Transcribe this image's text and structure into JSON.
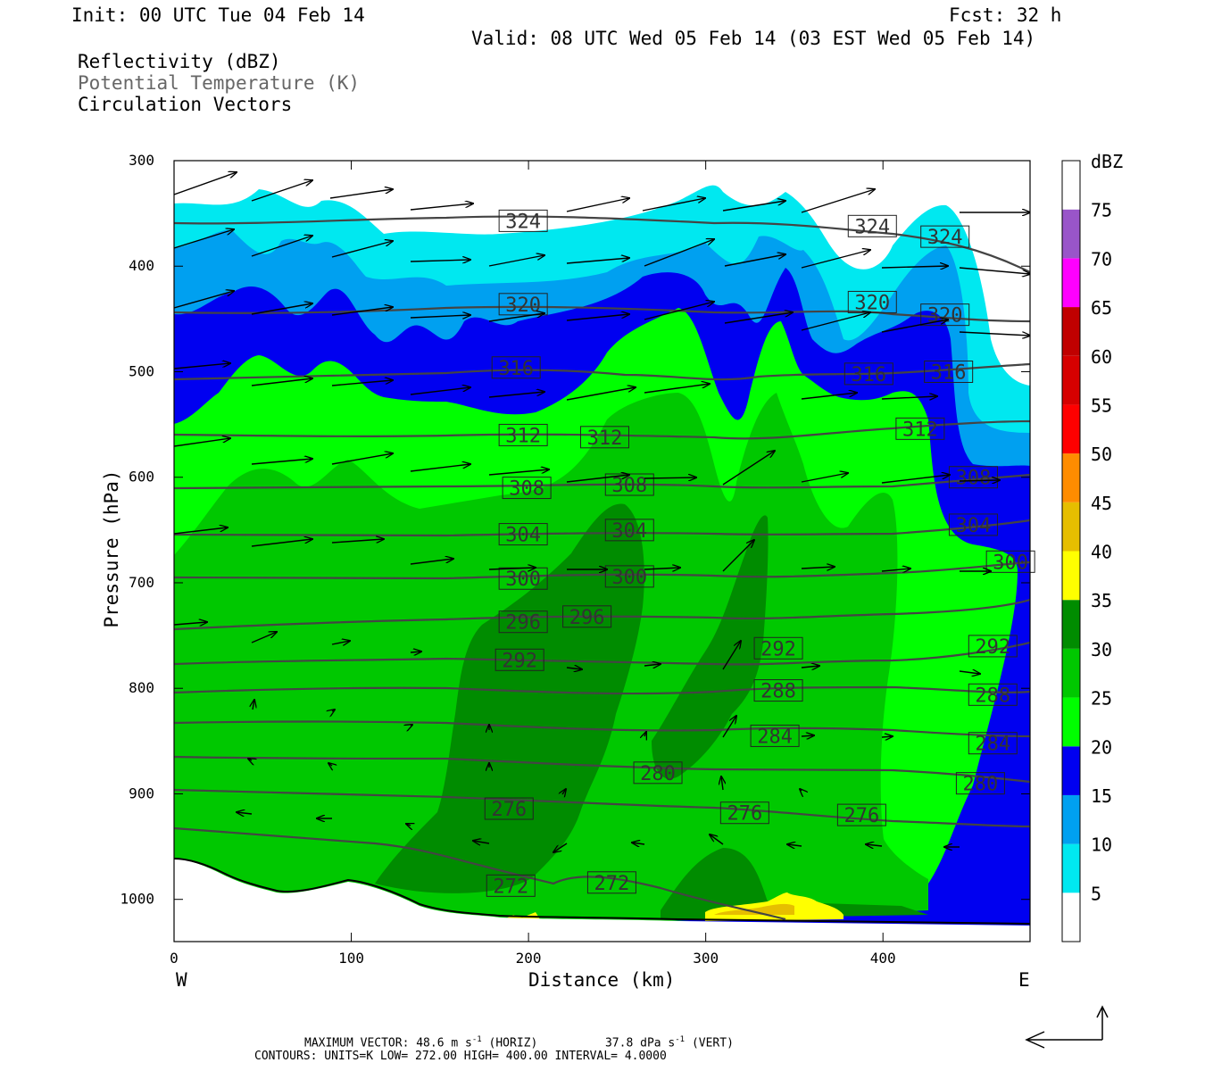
{
  "header": {
    "init": "Init: 00 UTC Tue 04 Feb 14",
    "fcst": "Fcst:   32 h",
    "valid": "Valid: 08 UTC Wed 05 Feb 14 (03 EST Wed 05 Feb 14)"
  },
  "fields": {
    "reflectivity": "Reflectivity (dBZ)",
    "theta": "Potential Temperature (K)",
    "vectors": "Circulation Vectors"
  },
  "footer": {
    "max_vector_label": "MAXIMUM VECTOR:",
    "max_h_value": "48.6 m s",
    "max_h_unit": "(HORIZ)",
    "max_v_value": "37.8 dPa s",
    "max_v_unit": "(VERT)",
    "exp": "-1",
    "contours": "CONTOURS:  UNITS=K  LOW=  272.00      HIGH=  400.00       INTERVAL=    4.0000"
  },
  "colorbar": {
    "unit": "dBZ",
    "levels": [
      5,
      10,
      15,
      20,
      25,
      30,
      35,
      40,
      45,
      50,
      55,
      60,
      65,
      70,
      75
    ],
    "colors": [
      "#ffffff",
      "#00e8f0",
      "#00a0f0",
      "#0000f0",
      "#00ff00",
      "#00c800",
      "#008c00",
      "#ffff00",
      "#e6be00",
      "#ff8c00",
      "#ff0000",
      "#d60000",
      "#c00000",
      "#ff00ff",
      "#9955c9",
      "#ffffff"
    ]
  },
  "chart_data": {
    "type": "contour",
    "xlabel": "Distance (km)",
    "ylabel": "Pressure (hPa)",
    "xlim": [
      0,
      483
    ],
    "ylim": [
      1040,
      300
    ],
    "x_ticks": [
      0,
      100,
      200,
      300,
      400
    ],
    "y_ticks": [
      300,
      400,
      500,
      600,
      700,
      800,
      900,
      1000
    ],
    "x_end_labels": {
      "left": "W",
      "right": "E"
    },
    "theta_labels": [
      {
        "value": "324",
        "x": 197,
        "p": 357
      },
      {
        "value": "324",
        "x": 394,
        "p": 362
      },
      {
        "value": "324",
        "x": 435,
        "p": 372
      },
      {
        "value": "320",
        "x": 197,
        "p": 436
      },
      {
        "value": "320",
        "x": 394,
        "p": 434
      },
      {
        "value": "320",
        "x": 435,
        "p": 446
      },
      {
        "value": "316",
        "x": 193,
        "p": 496
      },
      {
        "value": "316",
        "x": 392,
        "p": 502
      },
      {
        "value": "316",
        "x": 437,
        "p": 500
      },
      {
        "value": "312",
        "x": 197,
        "p": 560
      },
      {
        "value": "312",
        "x": 243,
        "p": 562
      },
      {
        "value": "312",
        "x": 421,
        "p": 554
      },
      {
        "value": "308",
        "x": 199,
        "p": 610
      },
      {
        "value": "308",
        "x": 257,
        "p": 607
      },
      {
        "value": "308",
        "x": 451,
        "p": 600
      },
      {
        "value": "304",
        "x": 197,
        "p": 654
      },
      {
        "value": "304",
        "x": 257,
        "p": 650
      },
      {
        "value": "304",
        "x": 451,
        "p": 645
      },
      {
        "value": "300",
        "x": 197,
        "p": 696
      },
      {
        "value": "300",
        "x": 257,
        "p": 694
      },
      {
        "value": "300",
        "x": 472,
        "p": 680
      },
      {
        "value": "296",
        "x": 197,
        "p": 737
      },
      {
        "value": "296",
        "x": 233,
        "p": 732
      },
      {
        "value": "292",
        "x": 195,
        "p": 773
      },
      {
        "value": "292",
        "x": 341,
        "p": 762
      },
      {
        "value": "292",
        "x": 462,
        "p": 760
      },
      {
        "value": "288",
        "x": 341,
        "p": 802
      },
      {
        "value": "288",
        "x": 462,
        "p": 806
      },
      {
        "value": "284",
        "x": 339,
        "p": 845
      },
      {
        "value": "284",
        "x": 462,
        "p": 852
      },
      {
        "value": "280",
        "x": 273,
        "p": 880
      },
      {
        "value": "280",
        "x": 455,
        "p": 890
      },
      {
        "value": "276",
        "x": 189,
        "p": 914
      },
      {
        "value": "276",
        "x": 322,
        "p": 918
      },
      {
        "value": "276",
        "x": 388,
        "p": 920
      },
      {
        "value": "272",
        "x": 190,
        "p": 987
      },
      {
        "value": "272",
        "x": 247,
        "p": 984
      }
    ]
  }
}
